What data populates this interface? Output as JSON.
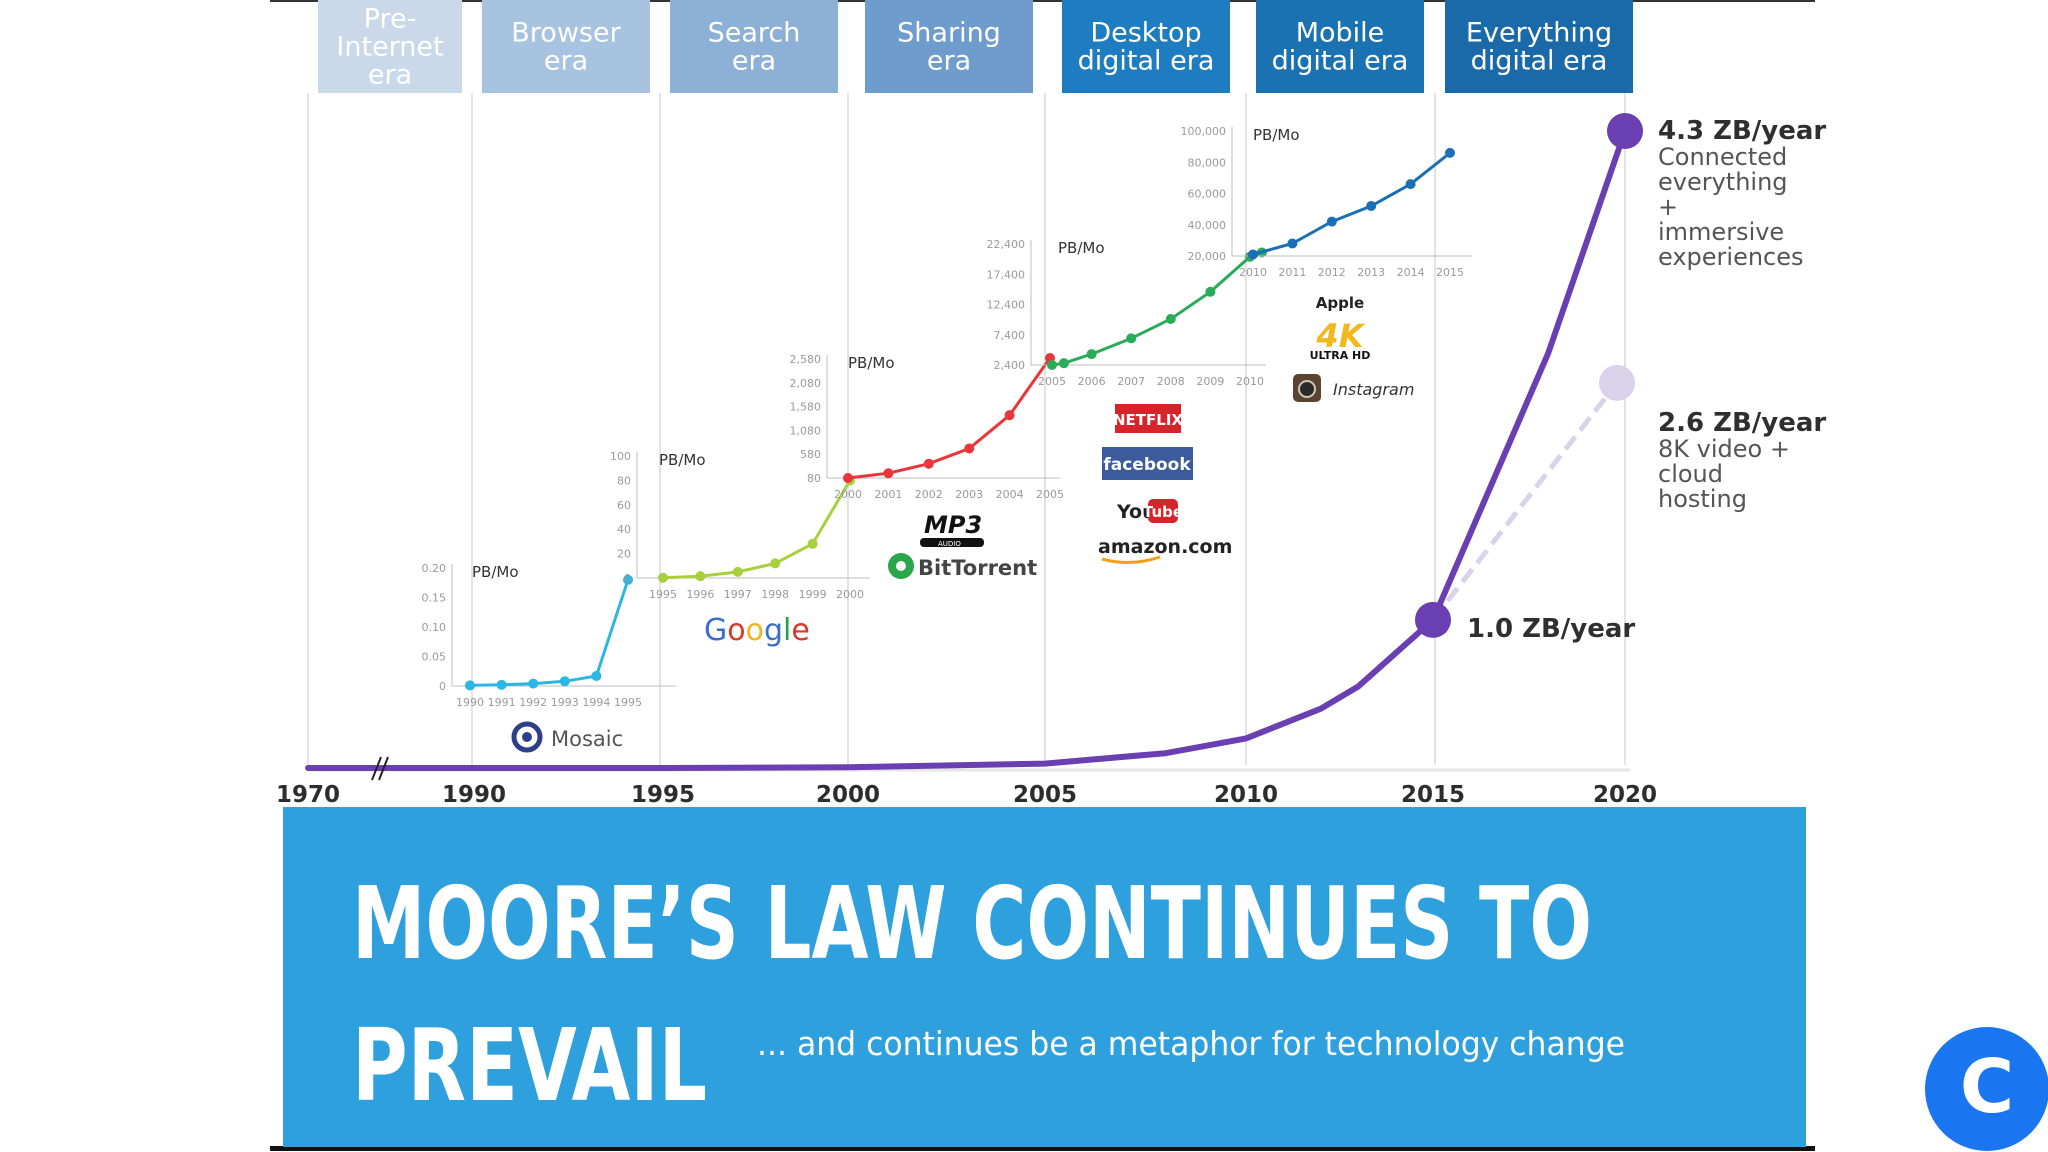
{
  "eras": [
    {
      "label": "Pre-\nInternet\nera",
      "color": "#c9d9ea"
    },
    {
      "label": "Browser\nera",
      "color": "#a7c3df"
    },
    {
      "label": "Search\nera",
      "color": "#8cb0d6"
    },
    {
      "label": "Sharing\nera",
      "color": "#6e9ccc"
    },
    {
      "label": "Desktop\ndigital era",
      "color": "#1e7dc0"
    },
    {
      "label": "Mobile\ndigital era",
      "color": "#1b72b3"
    },
    {
      "label": "Everything\ndigital era",
      "color": "#1a69a8"
    }
  ],
  "colors": {
    "main_line": "#6a3fb1",
    "projection": "#d8d2ea",
    "banner": "#2ea0dd"
  },
  "chart_data": [
    {
      "type": "line",
      "name": "main-trend",
      "x_ticks": [
        "1970",
        "1990",
        "1995",
        "2000",
        "2005",
        "2010",
        "2015",
        "2020"
      ],
      "series": [
        {
          "x": [
            1970,
            1990,
            1995,
            2000,
            2005,
            2008,
            2010,
            2012,
            2013,
            2015,
            2016,
            2018,
            2020
          ],
          "y": [
            0,
            0,
            0,
            0.005,
            0.03,
            0.1,
            0.2,
            0.4,
            0.55,
            1.0,
            1.6,
            2.8,
            4.3
          ]
        },
        {
          "x": [
            2015,
            2020
          ],
          "y": [
            1.0,
            2.6
          ]
        }
      ],
      "annotations": [
        {
          "year": 2020,
          "main": "4.3 ZB/year",
          "sub": [
            "Connected",
            "everything",
            "+",
            "immersive",
            "experiences"
          ]
        },
        {
          "year": 2020,
          "main": "2.6 ZB/year",
          "sub": [
            "8K video +",
            "cloud",
            "hosting"
          ]
        },
        {
          "year": 2015,
          "main": "1.0 ZB/year",
          "sub": []
        }
      ]
    },
    {
      "type": "line",
      "name": "inset-1990-1995",
      "unit_label": "PB/Mo",
      "color": "#2bb6e4",
      "x_ticks": [
        "1990",
        "1991",
        "1992",
        "1993",
        "1994",
        "1995"
      ],
      "y_ticks": [
        "0",
        "0.05",
        "0.10",
        "0.15",
        "0.20"
      ],
      "ylim": [
        0,
        0.2
      ],
      "x": [
        1990,
        1991,
        1992,
        1993,
        1994,
        1995
      ],
      "y": [
        0.001,
        0.002,
        0.004,
        0.008,
        0.017,
        0.18
      ]
    },
    {
      "type": "line",
      "name": "inset-1995-2000",
      "unit_label": "PB/Mo",
      "color": "#a8cf3c",
      "x_ticks": [
        "1995",
        "1996",
        "1997",
        "1998",
        "1999",
        "2000"
      ],
      "y_ticks": [
        "0",
        "20",
        "40",
        "60",
        "80",
        "100"
      ],
      "ylim": [
        0,
        100
      ],
      "x": [
        1995,
        1996,
        1997,
        1998,
        1999,
        2000
      ],
      "y": [
        0.2,
        1.5,
        5,
        12,
        28,
        80
      ]
    },
    {
      "type": "line",
      "name": "inset-2000-2005",
      "unit_label": "PB/Mo",
      "color": "#e8363a",
      "x_ticks": [
        "2000",
        "2001",
        "2002",
        "2003",
        "2004",
        "2005"
      ],
      "y_ticks": [
        "80",
        "580",
        "1,080",
        "1,580",
        "2,080",
        "2,580"
      ],
      "ylim": [
        80,
        2580
      ],
      "x": [
        2000,
        2001,
        2002,
        2003,
        2004,
        2005
      ],
      "y": [
        80,
        180,
        380,
        700,
        1400,
        2600
      ]
    },
    {
      "type": "line",
      "name": "inset-2005-2010",
      "unit_label": "PB/Mo",
      "color": "#2aab5a",
      "x_ticks": [
        "2005",
        "2006",
        "2007",
        "2008",
        "2009",
        "2010"
      ],
      "y_ticks": [
        "2,400",
        "7,400",
        "12,400",
        "17,400",
        "22,400"
      ],
      "ylim": [
        2400,
        22400
      ],
      "x": [
        2005,
        2005.3,
        2006,
        2007,
        2008,
        2009,
        2010,
        2010.3
      ],
      "y": [
        2400,
        2700,
        4200,
        6800,
        10000,
        14500,
        20300,
        21000
      ]
    },
    {
      "type": "line",
      "name": "inset-2010-2015",
      "unit_label": "PB/Mo",
      "color": "#1b6fb5",
      "x_ticks": [
        "2010",
        "2011",
        "2012",
        "2013",
        "2014",
        "2015"
      ],
      "y_ticks": [
        "20,000",
        "40,000",
        "60,000",
        "80,000",
        "100,000"
      ],
      "ylim": [
        20000,
        100000
      ],
      "x": [
        2010,
        2011,
        2012,
        2013,
        2014,
        2015
      ],
      "y": [
        21000,
        28000,
        42000,
        52000,
        66000,
        86000
      ]
    }
  ],
  "logos": {
    "mosaic": "Mosaic",
    "google": [
      "G",
      "o",
      "o",
      "g",
      "l",
      "e"
    ],
    "mp3": "MP3",
    "mp3_sup": "3",
    "mp3_sub": "AUDIO",
    "bittorrent": "BitTorrent",
    "netflix": "NETFLIX",
    "facebook": "facebook",
    "youtube_you": "You",
    "youtube_tube": "Tube",
    "amazon": "amazon.com",
    "apple": "Apple",
    "ultra_hd_big": "4K",
    "ultra_hd_small": "ULTRA HD",
    "instagram": "Instagram"
  },
  "banner": {
    "headline_line1": "MOORE’S LAW CONTINUES TO",
    "headline_line2": "PREVAIL",
    "subline": "... and continues be a metaphor for technology change"
  },
  "badge": {
    "glyph": "C"
  }
}
